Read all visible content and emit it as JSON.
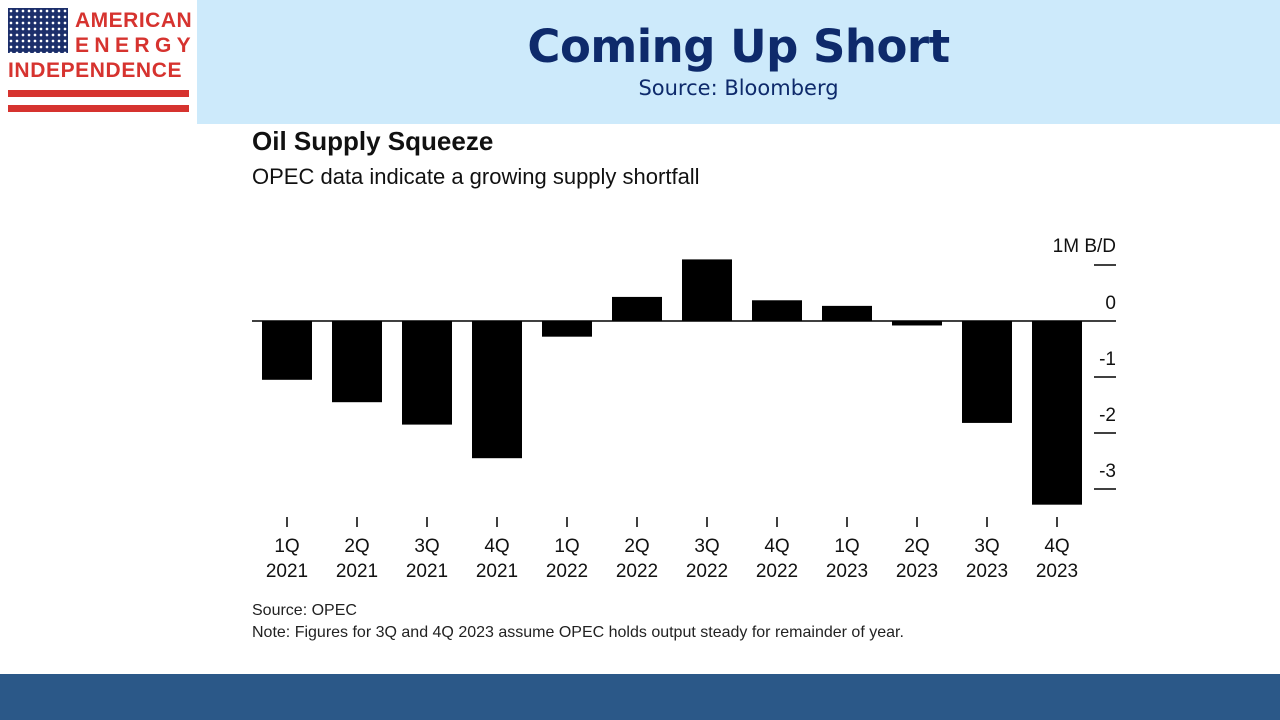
{
  "slide": {
    "title": "Coming Up Short",
    "source": "Source: Bloomberg"
  },
  "logo": {
    "word1": "AMERICAN",
    "word2": "ENERGY",
    "word3": "INDEPENDENCE",
    "brand_color": "#d6332f",
    "flag_color": "#1c2f6b"
  },
  "colors": {
    "header_bg": "#cdeafb",
    "title": "#0e2a6b",
    "footer_bg": "#2b5888",
    "bar": "#000000"
  },
  "chart_data": {
    "type": "bar",
    "title": "Oil Supply Squeeze",
    "subtitle": "OPEC data indicate a growing supply shortfall",
    "ylabel": "1M B/D",
    "categories": [
      [
        "1Q",
        "2021"
      ],
      [
        "2Q",
        "2021"
      ],
      [
        "3Q",
        "2021"
      ],
      [
        "4Q",
        "2021"
      ],
      [
        "1Q",
        "2022"
      ],
      [
        "2Q",
        "2022"
      ],
      [
        "3Q",
        "2022"
      ],
      [
        "4Q",
        "2022"
      ],
      [
        "1Q",
        "2023"
      ],
      [
        "2Q",
        "2023"
      ],
      [
        "3Q",
        "2023"
      ],
      [
        "4Q",
        "2023"
      ]
    ],
    "values": [
      -1.05,
      -1.45,
      -1.85,
      -2.45,
      -0.28,
      0.43,
      1.1,
      0.37,
      0.27,
      -0.08,
      -1.82,
      -3.28
    ],
    "yticks": [
      0,
      -1,
      -2,
      -3
    ],
    "ylim": [
      -3.3,
      1.1
    ],
    "axis_position": "right",
    "grid": false,
    "source_note": "Source: OPEC",
    "note": "Note: Figures for 3Q and 4Q 2023 assume OPEC holds output steady for remainder of year."
  }
}
